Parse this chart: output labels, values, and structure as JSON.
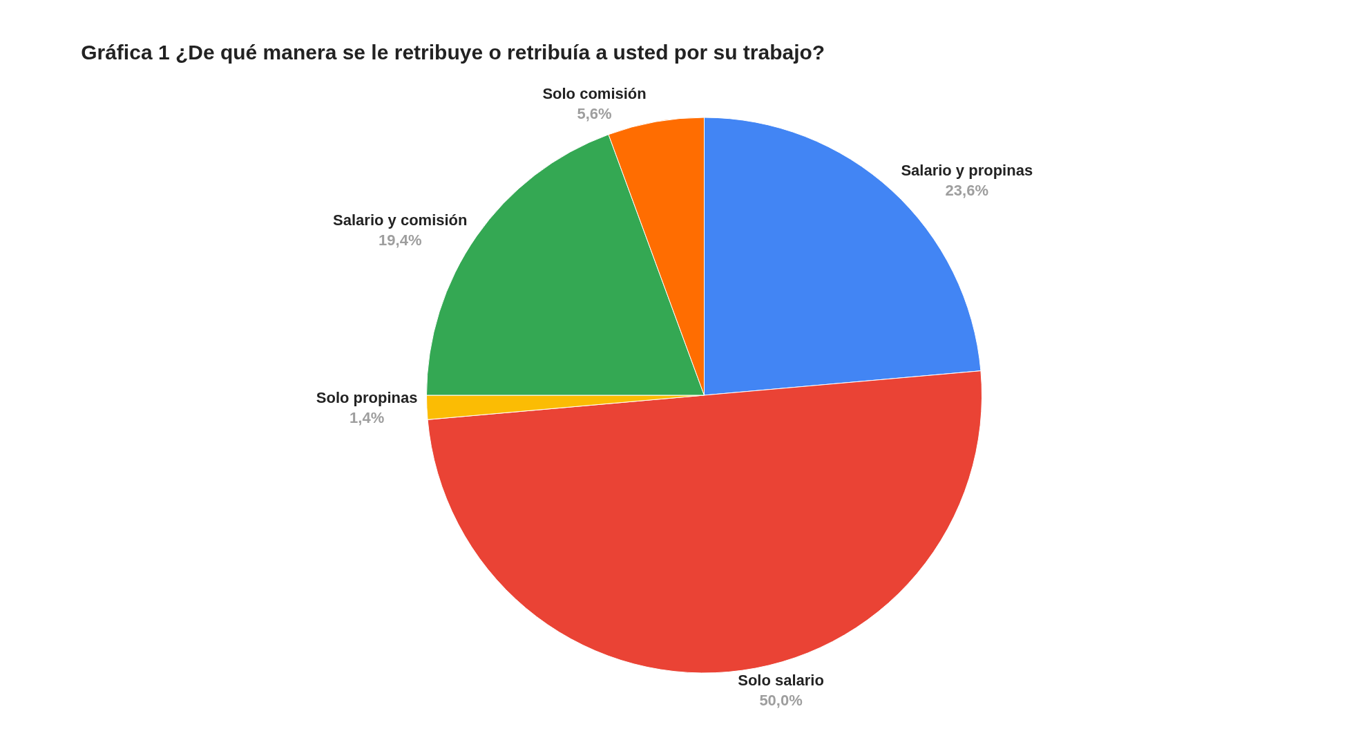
{
  "chart_data": {
    "type": "pie",
    "title": "Gráfica 1 ¿De qué manera se le retribuye o retribuía a usted por su trabajo?",
    "categories": [
      "Salario y propinas",
      "Solo salario",
      "Solo propinas",
      "Salario y comisión",
      "Solo comisión"
    ],
    "values": [
      23.6,
      50.0,
      1.4,
      19.4,
      5.6
    ],
    "value_labels": [
      "23,6%",
      "50,0%",
      "1,4%",
      "19,4%",
      "5,6%"
    ],
    "colors": [
      "#4285f4",
      "#ea4335",
      "#fbbc04",
      "#34a853",
      "#ff6d01"
    ],
    "legend": false
  }
}
